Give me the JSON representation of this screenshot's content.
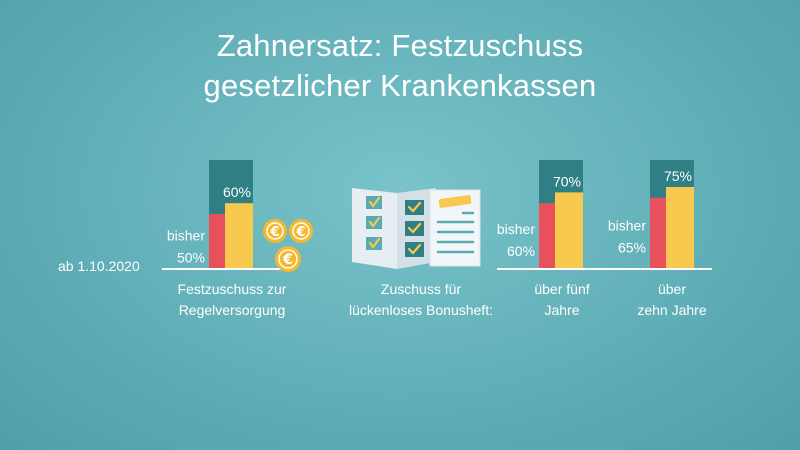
{
  "title": {
    "line1": "Zahnersatz: Festzuschuss",
    "line2": "gesetzlicher Krankenkassen"
  },
  "date_label": "ab 1.10.2020",
  "colors": {
    "background": "#61afb8",
    "old_bar": "#e8505b",
    "new_bar": "#f7c94f",
    "bar_background": "#2f7f85",
    "baseline": "#ffffff",
    "coin": "#f5b82e"
  },
  "icons": {
    "coins": "euro-coin-icon",
    "bonusbook": "bonus-booklet-icon"
  },
  "chart_data": {
    "type": "bar",
    "ylim": [
      0,
      100
    ],
    "series": [
      {
        "name": "bisher",
        "values": [
          50,
          60,
          65
        ]
      },
      {
        "name": "ab 1.10.2020",
        "values": [
          60,
          70,
          75
        ]
      }
    ],
    "groups": [
      {
        "old_label": "bisher",
        "old_value_label": "50%",
        "new_value_label": "60%",
        "caption": [
          "Festzuschuss zur",
          "Regelversorgung"
        ]
      },
      {
        "old_label": "bisher",
        "old_value_label": "60%",
        "new_value_label": "70%",
        "caption": [
          "über fünf",
          "Jahre"
        ]
      },
      {
        "old_label": "bisher",
        "old_value_label": "65%",
        "new_value_label": "75%",
        "caption": [
          "über",
          "zehn Jahre"
        ]
      }
    ],
    "middle_caption": [
      "Zuschuss für",
      "lückenloses Bonusheft:"
    ]
  }
}
